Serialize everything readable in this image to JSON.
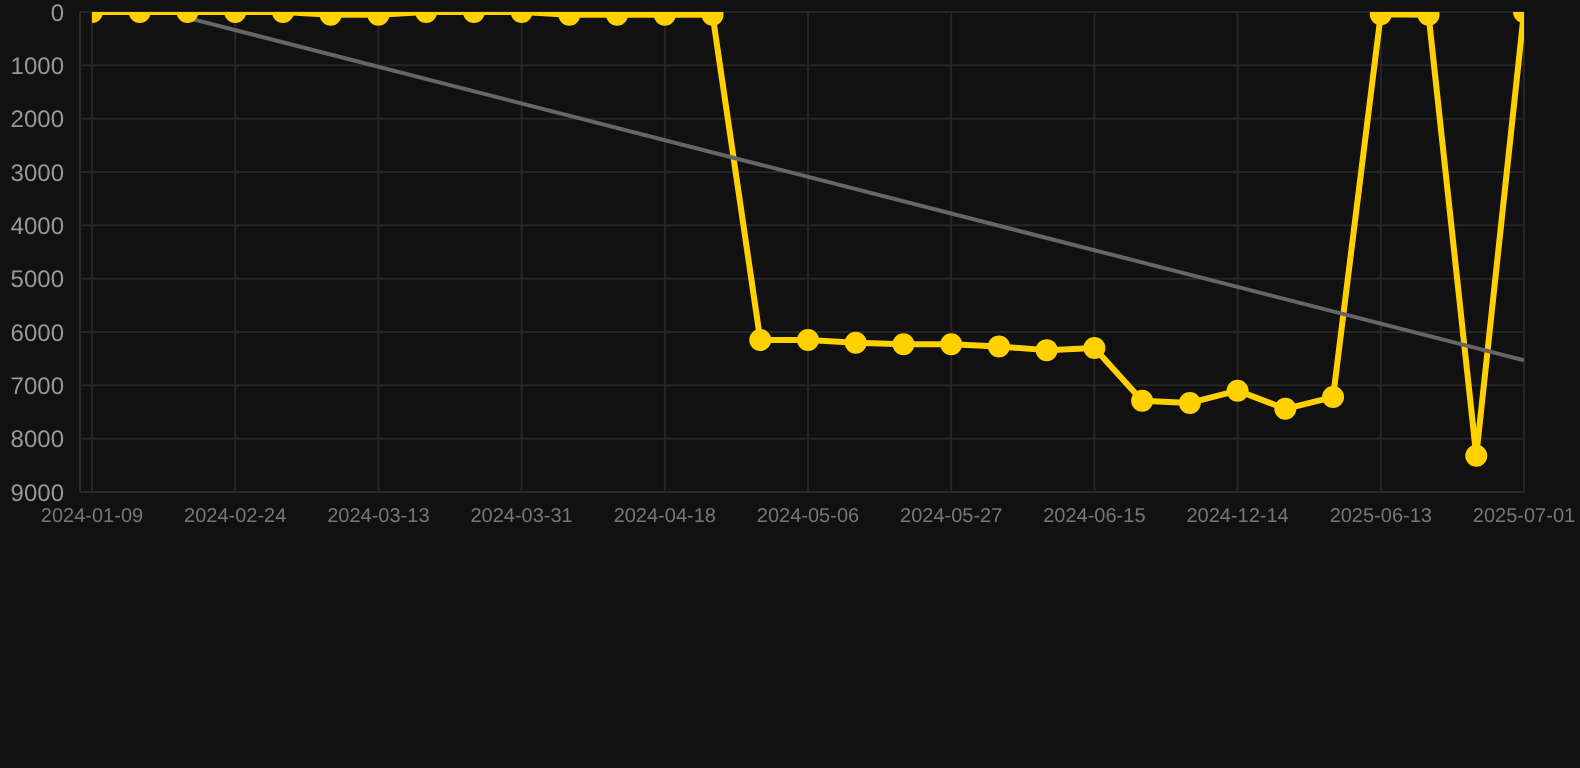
{
  "chart_data": {
    "type": "line",
    "categories": [
      "2024-01-09",
      null,
      null,
      "2024-02-24",
      null,
      null,
      "2024-03-13",
      null,
      null,
      "2024-03-31",
      null,
      null,
      "2024-04-18",
      null,
      null,
      "2024-05-06",
      null,
      null,
      "2024-05-27",
      null,
      null,
      "2024-06-15",
      null,
      null,
      "2024-12-14",
      null,
      null,
      "2025-06-13",
      null,
      null,
      "2025-07-01"
    ],
    "series": [
      {
        "color": "#ffd100",
        "marker": "circle",
        "values": [
          0,
          0,
          0,
          0,
          0,
          50,
          50,
          0,
          0,
          0,
          50,
          50,
          50,
          50,
          6150,
          6150,
          6200,
          6230,
          6230,
          6270,
          6340,
          6300,
          7290,
          7330,
          7100,
          7440,
          7220,
          40,
          50,
          8320,
          0
        ]
      },
      {
        "type": "line",
        "color": "#666666",
        "marker": "none",
        "values": [
          null,
          null,
          110,
          null,
          null,
          null,
          null,
          null,
          null,
          null,
          null,
          null,
          null,
          null,
          null,
          null,
          null,
          null,
          null,
          null,
          null,
          null,
          null,
          null,
          null,
          null,
          null,
          null,
          null,
          null,
          6530
        ]
      }
    ],
    "ylim": [
      9000,
      0
    ],
    "yticks": [
      0,
      1000,
      2000,
      3000,
      4000,
      5000,
      6000,
      7000,
      8000,
      9000
    ],
    "grid": true
  }
}
